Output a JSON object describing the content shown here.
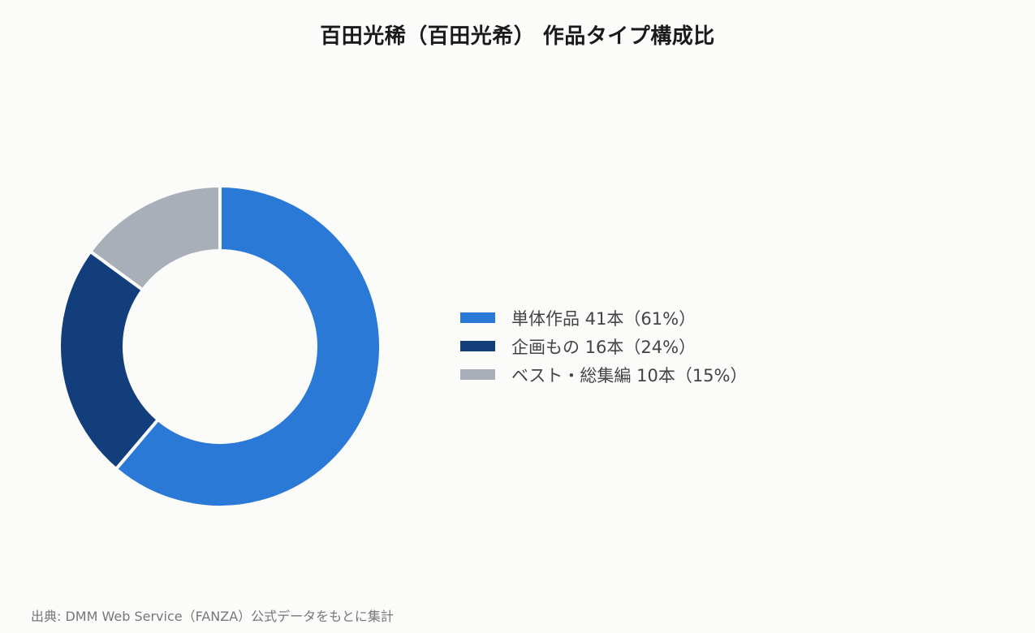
{
  "chart_data": {
    "type": "pie",
    "variant": "donut",
    "title": "百田光稀（百田光希） 作品タイプ構成比",
    "categories": [
      "単体作品",
      "企画もの",
      "ベスト・総集編"
    ],
    "values": [
      41,
      16,
      10
    ],
    "percentages": [
      61,
      24,
      15
    ],
    "unit": "本",
    "colors": [
      "#2b79d6",
      "#123f7c",
      "#a8afb9"
    ],
    "legend": {
      "placement": "right",
      "entries": [
        "単体作品 41本（61%）",
        "企画もの 16本（24%）",
        "ベスト・総集編 10本（15%）"
      ]
    },
    "source": "出典: DMM Web Service（FANZA）公式データをもとに集計"
  }
}
